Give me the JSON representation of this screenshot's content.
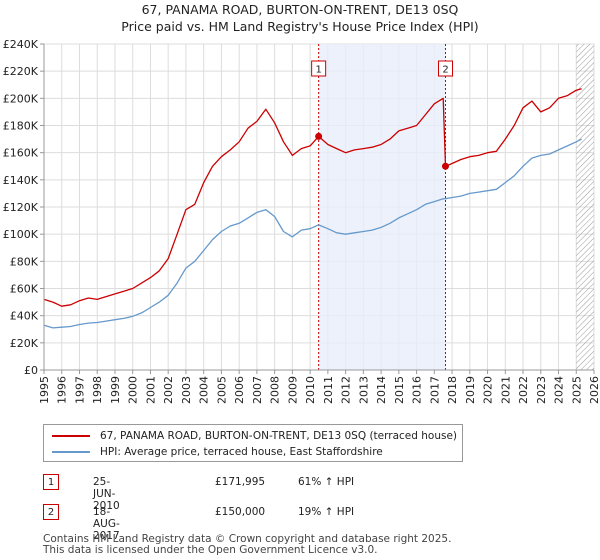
{
  "title_line1": "67, PANAMA ROAD, BURTON-ON-TRENT, DE13 0SQ",
  "title_line2": "Price paid vs. HM Land Registry's House Price Index (HPI)",
  "chart_data": {
    "type": "line",
    "title": "67, PANAMA ROAD, BURTON-ON-TRENT, DE13 0SQ",
    "subtitle": "Price paid vs. HM Land Registry's House Price Index (HPI)",
    "xlabel": "",
    "ylabel": "",
    "xlim": [
      1995,
      2026
    ],
    "ylim": [
      0,
      240000
    ],
    "x_ticks": [
      "1995",
      "1996",
      "1997",
      "1998",
      "1999",
      "2000",
      "2001",
      "2002",
      "2003",
      "2004",
      "2005",
      "2006",
      "2007",
      "2008",
      "2009",
      "2010",
      "2011",
      "2012",
      "2013",
      "2014",
      "2015",
      "2016",
      "2017",
      "2018",
      "2019",
      "2020",
      "2021",
      "2022",
      "2023",
      "2024",
      "2025",
      "2026"
    ],
    "y_ticks": [
      {
        "value": 0,
        "label": "£0"
      },
      {
        "value": 20000,
        "label": "£20K"
      },
      {
        "value": 40000,
        "label": "£40K"
      },
      {
        "value": 60000,
        "label": "£60K"
      },
      {
        "value": 80000,
        "label": "£80K"
      },
      {
        "value": 100000,
        "label": "£100K"
      },
      {
        "value": 120000,
        "label": "£120K"
      },
      {
        "value": 140000,
        "label": "£140K"
      },
      {
        "value": 160000,
        "label": "£160K"
      },
      {
        "value": 180000,
        "label": "£180K"
      },
      {
        "value": 200000,
        "label": "£200K"
      },
      {
        "value": 220000,
        "label": "£220K"
      },
      {
        "value": 240000,
        "label": "£240K"
      }
    ],
    "grid": true,
    "shaded_region": [
      2010.48,
      2017.63
    ],
    "future_hatch_from": 2025.0,
    "series": [
      {
        "name": "67, PANAMA ROAD, BURTON-ON-TRENT, DE13 0SQ (terraced house)",
        "color": "#cc0000",
        "x": [
          1995.0,
          1995.5,
          1996.0,
          1996.5,
          1997.0,
          1997.5,
          1998.0,
          1998.5,
          1999.0,
          1999.5,
          2000.0,
          2000.5,
          2001.0,
          2001.5,
          2002.0,
          2002.5,
          2003.0,
          2003.5,
          2004.0,
          2004.5,
          2005.0,
          2005.5,
          2006.0,
          2006.5,
          2007.0,
          2007.5,
          2008.0,
          2008.5,
          2009.0,
          2009.5,
          2010.0,
          2010.48,
          2011.0,
          2011.5,
          2012.0,
          2012.5,
          2013.0,
          2013.5,
          2014.0,
          2014.5,
          2015.0,
          2015.5,
          2016.0,
          2016.5,
          2017.0,
          2017.5,
          2017.63,
          2018.0,
          2018.5,
          2019.0,
          2019.5,
          2020.0,
          2020.5,
          2021.0,
          2021.5,
          2022.0,
          2022.5,
          2023.0,
          2023.5,
          2024.0,
          2024.5,
          2025.0,
          2025.3
        ],
        "y": [
          52000,
          50000,
          47000,
          48000,
          51000,
          53000,
          52000,
          54000,
          56000,
          58000,
          60000,
          64000,
          68000,
          73000,
          82000,
          100000,
          118000,
          122000,
          138000,
          150000,
          157000,
          162000,
          168000,
          178000,
          183000,
          192000,
          182000,
          168000,
          158000,
          163000,
          165000,
          171995,
          166000,
          163000,
          160000,
          162000,
          163000,
          164000,
          166000,
          170000,
          176000,
          178000,
          180000,
          188000,
          196000,
          200000,
          150000,
          152000,
          155000,
          157000,
          158000,
          160000,
          161000,
          170000,
          180000,
          193000,
          198000,
          190000,
          193000,
          200000,
          202000,
          206000,
          207000
        ]
      },
      {
        "name": "HPI: Average price, terraced house, East Staffordshire",
        "color": "#6699cc",
        "x": [
          1995.0,
          1995.5,
          1996.0,
          1996.5,
          1997.0,
          1997.5,
          1998.0,
          1998.5,
          1999.0,
          1999.5,
          2000.0,
          2000.5,
          2001.0,
          2001.5,
          2002.0,
          2002.5,
          2003.0,
          2003.5,
          2004.0,
          2004.5,
          2005.0,
          2005.5,
          2006.0,
          2006.5,
          2007.0,
          2007.5,
          2008.0,
          2008.5,
          2009.0,
          2009.5,
          2010.0,
          2010.48,
          2011.0,
          2011.5,
          2012.0,
          2012.5,
          2013.0,
          2013.5,
          2014.0,
          2014.5,
          2015.0,
          2015.5,
          2016.0,
          2016.5,
          2017.0,
          2017.5,
          2017.63,
          2018.0,
          2018.5,
          2019.0,
          2019.5,
          2020.0,
          2020.5,
          2021.0,
          2021.5,
          2022.0,
          2022.5,
          2023.0,
          2023.5,
          2024.0,
          2024.5,
          2025.0,
          2025.3
        ],
        "y": [
          33000,
          31000,
          31500,
          32000,
          33500,
          34500,
          35000,
          36000,
          37000,
          38000,
          39500,
          42000,
          46000,
          50000,
          55000,
          64000,
          75000,
          80000,
          88000,
          96000,
          102000,
          106000,
          108000,
          112000,
          116000,
          118000,
          113000,
          102000,
          98000,
          103000,
          104000,
          106800,
          104000,
          101000,
          100000,
          101000,
          102000,
          103000,
          105000,
          108000,
          112000,
          115000,
          118000,
          122000,
          124000,
          126000,
          126100,
          127000,
          128000,
          130000,
          131000,
          132000,
          133000,
          138000,
          143000,
          150000,
          156000,
          158000,
          159000,
          162000,
          165000,
          168000,
          170000
        ]
      }
    ],
    "annotations": [
      {
        "label": "1",
        "x": 2010.48,
        "y": 171995
      },
      {
        "label": "2",
        "x": 2017.63,
        "y": 150000
      }
    ]
  },
  "legend": [
    {
      "label": "67, PANAMA ROAD, BURTON-ON-TRENT, DE13 0SQ (terraced house)",
      "color": "#cc0000"
    },
    {
      "label": "HPI: Average price, terraced house, East Staffordshire",
      "color": "#6699cc"
    }
  ],
  "sales": [
    {
      "num": "1",
      "date": "25-JUN-2010",
      "price": "£171,995",
      "hpi": "61% ↑ HPI"
    },
    {
      "num": "2",
      "date": "18-AUG-2017",
      "price": "£150,000",
      "hpi": "19% ↑ HPI"
    }
  ],
  "footer": {
    "line1": "Contains HM Land Registry data © Crown copyright and database right 2025.",
    "line2": "This data is licensed under the Open Government Licence v3.0."
  }
}
